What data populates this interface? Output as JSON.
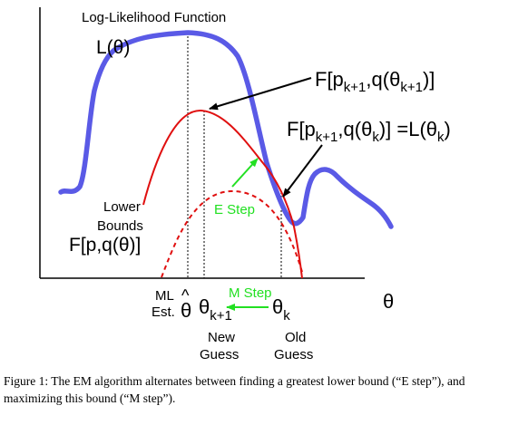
{
  "figure": {
    "title": "Log-Likelihood Function",
    "curve_label": "L(θ)",
    "bound_new": {
      "main": "F[p",
      "sub1": "k+1",
      "mid": ",q(θ",
      "sub2": "k+1",
      "end": ")]"
    },
    "bound_old": {
      "main": "F[p",
      "sub1": "k+1",
      "mid": ",q(θ",
      "sub2": "k",
      "end": ")] =L(θ",
      "sub3": "k",
      "end2": ")"
    },
    "lower_bounds": {
      "line1": "Lower",
      "line2": "Bounds",
      "formula": "F[p,q(θ)]"
    },
    "e_step": "E Step",
    "m_step": "M Step",
    "x_axis_label": "θ",
    "ml_estimate": {
      "line1": "ML",
      "line2": "Est.",
      "symbol": "θ",
      "hat": "^"
    },
    "theta_new": {
      "symbol": "θ",
      "sub": "k+1",
      "line1": "New",
      "line2": "Guess"
    },
    "theta_old": {
      "symbol": "θ",
      "sub": "k",
      "line1": "Old",
      "line2": "Guess"
    },
    "colors": {
      "likelihood": "#5a5ae6",
      "bound": "#e01010",
      "step": "#22e022",
      "axis": "#000000"
    }
  },
  "caption": "Figure 1: The EM algorithm alternates between finding a greatest lower bound (“E step”), and maximizing this bound (“M step”)."
}
